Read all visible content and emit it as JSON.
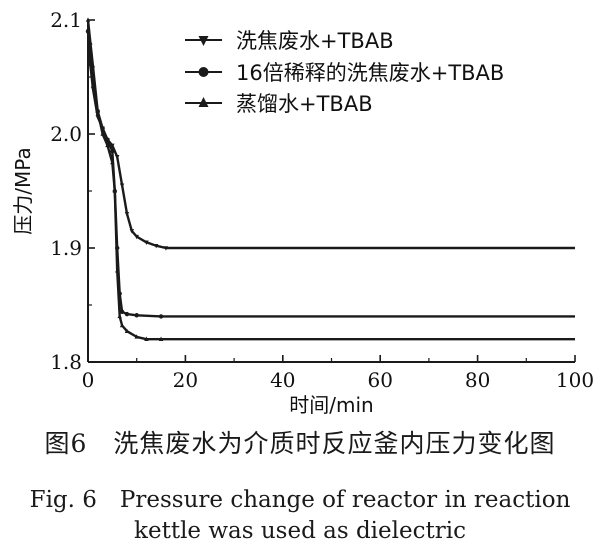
{
  "chart_data": {
    "type": "line",
    "xlabel": "时间/min",
    "ylabel": "压力/MPa",
    "xlim": [
      0,
      100
    ],
    "ylim": [
      1.8,
      2.1
    ],
    "x_ticks": [
      "0",
      "20",
      "40",
      "60",
      "80",
      "100"
    ],
    "y_ticks": [
      "1.8",
      "1.9",
      "2.0",
      "2.1"
    ],
    "grid": false,
    "legend_position": "top-right",
    "series": [
      {
        "name": "洗焦废水+TBAB",
        "marker": "triangle-down",
        "x": [
          0,
          0.5,
          1,
          2,
          3,
          4,
          5,
          6,
          7,
          8,
          9,
          10,
          12,
          14,
          16,
          20,
          30,
          40,
          50,
          60,
          70,
          80,
          90,
          100
        ],
        "y": [
          2.09,
          2.06,
          2.04,
          2.015,
          2.005,
          1.995,
          1.99,
          1.98,
          1.955,
          1.93,
          1.915,
          1.91,
          1.905,
          1.902,
          1.9,
          1.9,
          1.9,
          1.9,
          1.9,
          1.9,
          1.9,
          1.9,
          1.9,
          1.9
        ]
      },
      {
        "name": "16倍稀释的洗焦废水+TBAB",
        "marker": "circle",
        "x": [
          0,
          0.5,
          1,
          2,
          3,
          4,
          5,
          5.5,
          6,
          6.5,
          7,
          8,
          10,
          15,
          20,
          30,
          40,
          50,
          60,
          70,
          80,
          90,
          100
        ],
        "y": [
          2.09,
          2.07,
          2.05,
          2.02,
          2.005,
          1.995,
          1.985,
          1.95,
          1.9,
          1.86,
          1.844,
          1.842,
          1.841,
          1.84,
          1.84,
          1.84,
          1.84,
          1.84,
          1.84,
          1.84,
          1.84,
          1.84,
          1.84
        ]
      },
      {
        "name": "蒸馏水+TBAB",
        "marker": "triangle-up",
        "x": [
          0,
          0.5,
          1,
          2,
          3,
          4,
          5,
          5.5,
          6,
          6.5,
          7,
          8,
          10,
          12,
          15,
          20,
          30,
          40,
          50,
          60,
          70,
          80,
          90,
          100
        ],
        "y": [
          2.1,
          2.08,
          2.06,
          2.02,
          2.0,
          1.99,
          1.975,
          1.95,
          1.88,
          1.84,
          1.832,
          1.827,
          1.822,
          1.82,
          1.82,
          1.82,
          1.82,
          1.82,
          1.82,
          1.82,
          1.82,
          1.82,
          1.82,
          1.82
        ]
      }
    ]
  },
  "caption": {
    "cn": "图6　洗焦废水为介质时反应釜内压力变化图",
    "en_line1": "Fig. 6　Pressure change of reactor in reaction",
    "en_line2": "kettle was used as dielectric"
  }
}
